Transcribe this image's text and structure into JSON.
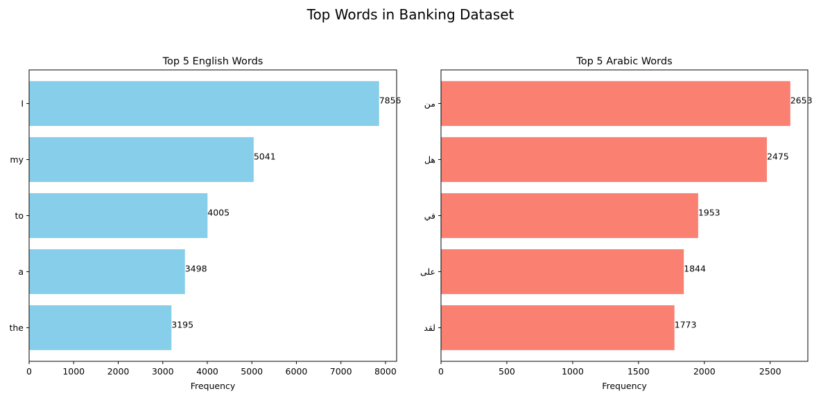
{
  "figure": {
    "title": "Top Words in Banking Dataset"
  },
  "chart_data": [
    {
      "type": "bar",
      "orientation": "horizontal",
      "title": "Top 5 English Words",
      "xlabel": "Frequency",
      "ylabel": "",
      "categories": [
        "I",
        "my",
        "to",
        "a",
        "the"
      ],
      "values": [
        7856,
        5041,
        4005,
        3498,
        3195
      ],
      "xlim": [
        0,
        8250
      ],
      "xticks": [
        0,
        1000,
        2000,
        3000,
        4000,
        5000,
        6000,
        7000,
        8000
      ],
      "color": "#87ceeb",
      "grid": false
    },
    {
      "type": "bar",
      "orientation": "horizontal",
      "title": "Top 5 Arabic Words",
      "xlabel": "Frequency",
      "ylabel": "",
      "categories": [
        "من",
        "هل",
        "في",
        "على",
        "لقد"
      ],
      "values": [
        2653,
        2475,
        1953,
        1844,
        1773
      ],
      "xlim": [
        0,
        2786
      ],
      "xticks": [
        0,
        500,
        1000,
        1500,
        2000,
        2500
      ],
      "color": "#fa8072",
      "grid": false
    }
  ]
}
